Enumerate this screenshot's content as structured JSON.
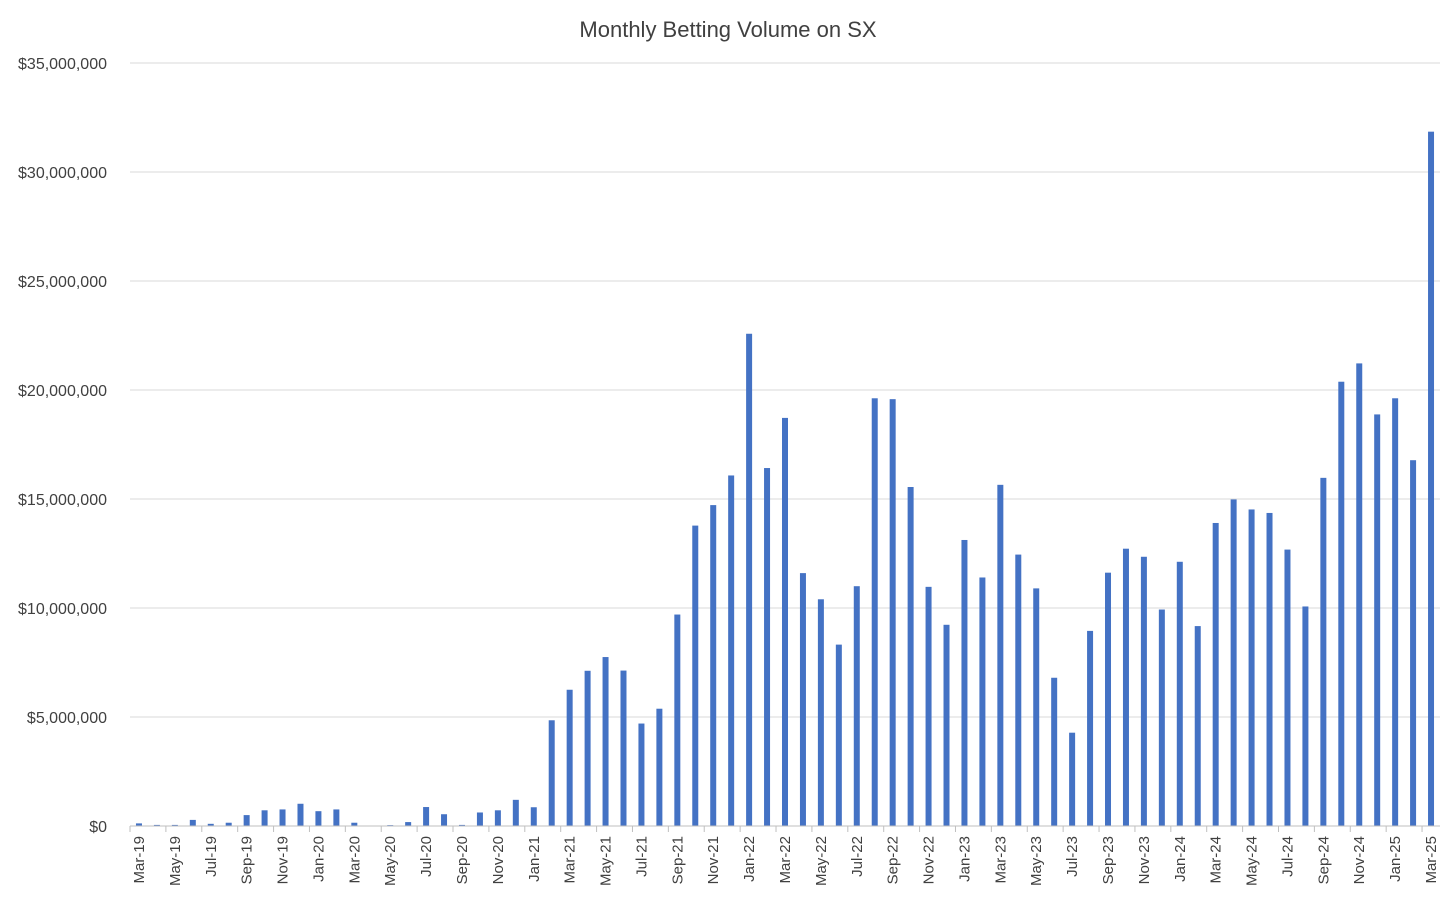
{
  "chart_data": {
    "type": "bar",
    "title": "Monthly Betting Volume on SX",
    "xlabel": "",
    "ylabel": "",
    "ylim": [
      0,
      35000000
    ],
    "grid": true,
    "legend": "none",
    "bar_color": "#4472C4",
    "y_ticks": [
      0,
      5000000,
      10000000,
      15000000,
      20000000,
      25000000,
      30000000,
      35000000
    ],
    "y_tick_labels": [
      "$0",
      "$5,000,000",
      "$10,000,000",
      "$15,000,000",
      "$20,000,000",
      "$25,000,000",
      "$30,000,000",
      "$35,000,000"
    ],
    "categories": [
      "Mar-19",
      "Apr-19",
      "May-19",
      "Jun-19",
      "Jul-19",
      "Aug-19",
      "Sep-19",
      "Oct-19",
      "Nov-19",
      "Dec-19",
      "Jan-20",
      "Feb-20",
      "Mar-20",
      "Apr-20",
      "May-20",
      "Jun-20",
      "Jul-20",
      "Aug-20",
      "Sep-20",
      "Oct-20",
      "Nov-20",
      "Dec-20",
      "Jan-21",
      "Feb-21",
      "Mar-21",
      "Apr-21",
      "May-21",
      "Jun-21",
      "Jul-21",
      "Aug-21",
      "Sep-21",
      "Oct-21",
      "Nov-21",
      "Dec-21",
      "Jan-22",
      "Feb-22",
      "Mar-22",
      "Apr-22",
      "May-22",
      "Jun-22",
      "Jul-22",
      "Aug-22",
      "Sep-22",
      "Oct-22",
      "Nov-22",
      "Dec-22",
      "Jan-23",
      "Feb-23",
      "Mar-23",
      "Apr-23",
      "May-23",
      "Jun-23",
      "Jul-23",
      "Aug-23",
      "Sep-23",
      "Oct-23",
      "Nov-23",
      "Dec-23",
      "Jan-24",
      "Feb-24",
      "Mar-24",
      "Apr-24",
      "May-24",
      "Jun-24",
      "Jul-24",
      "Aug-24",
      "Sep-24",
      "Oct-24",
      "Nov-24",
      "Dec-24",
      "Jan-25",
      "Feb-25",
      "Mar-25"
    ],
    "x_tick_labels": [
      "Mar-19",
      "May-19",
      "Jul-19",
      "Sep-19",
      "Nov-19",
      "Jan-20",
      "Mar-20",
      "May-20",
      "Jul-20",
      "Sep-20",
      "Nov-20",
      "Jan-21",
      "Mar-21",
      "May-21",
      "Jul-21",
      "Sep-21",
      "Nov-21",
      "Jan-22",
      "Mar-22",
      "May-22",
      "Jul-22",
      "Sep-22",
      "Nov-22",
      "Jan-23",
      "Mar-23",
      "May-23",
      "Jul-23",
      "Sep-23",
      "Nov-23",
      "Jan-24",
      "Mar-24",
      "May-24",
      "Jul-24",
      "Sep-24",
      "Nov-24",
      "Jan-25",
      "Mar-25"
    ],
    "values": [
      120000,
      50000,
      50000,
      280000,
      100000,
      150000,
      500000,
      720000,
      760000,
      1020000,
      680000,
      760000,
      150000,
      10000,
      40000,
      180000,
      870000,
      540000,
      50000,
      620000,
      720000,
      1200000,
      860000,
      4850000,
      6250000,
      7120000,
      7750000,
      7130000,
      4700000,
      5380000,
      9700000,
      13780000,
      14720000,
      16080000,
      22580000,
      16420000,
      18720000,
      11600000,
      10400000,
      8320000,
      11000000,
      19620000,
      19580000,
      15550000,
      10970000,
      9230000,
      13120000,
      11400000,
      15650000,
      12450000,
      10900000,
      6800000,
      4280000,
      8950000,
      11620000,
      12720000,
      12350000,
      9930000,
      12120000,
      9170000,
      13900000,
      14980000,
      14520000,
      14360000,
      12680000,
      10070000,
      15970000,
      20380000,
      21220000,
      18880000,
      19620000,
      16780000,
      31850000
    ]
  }
}
